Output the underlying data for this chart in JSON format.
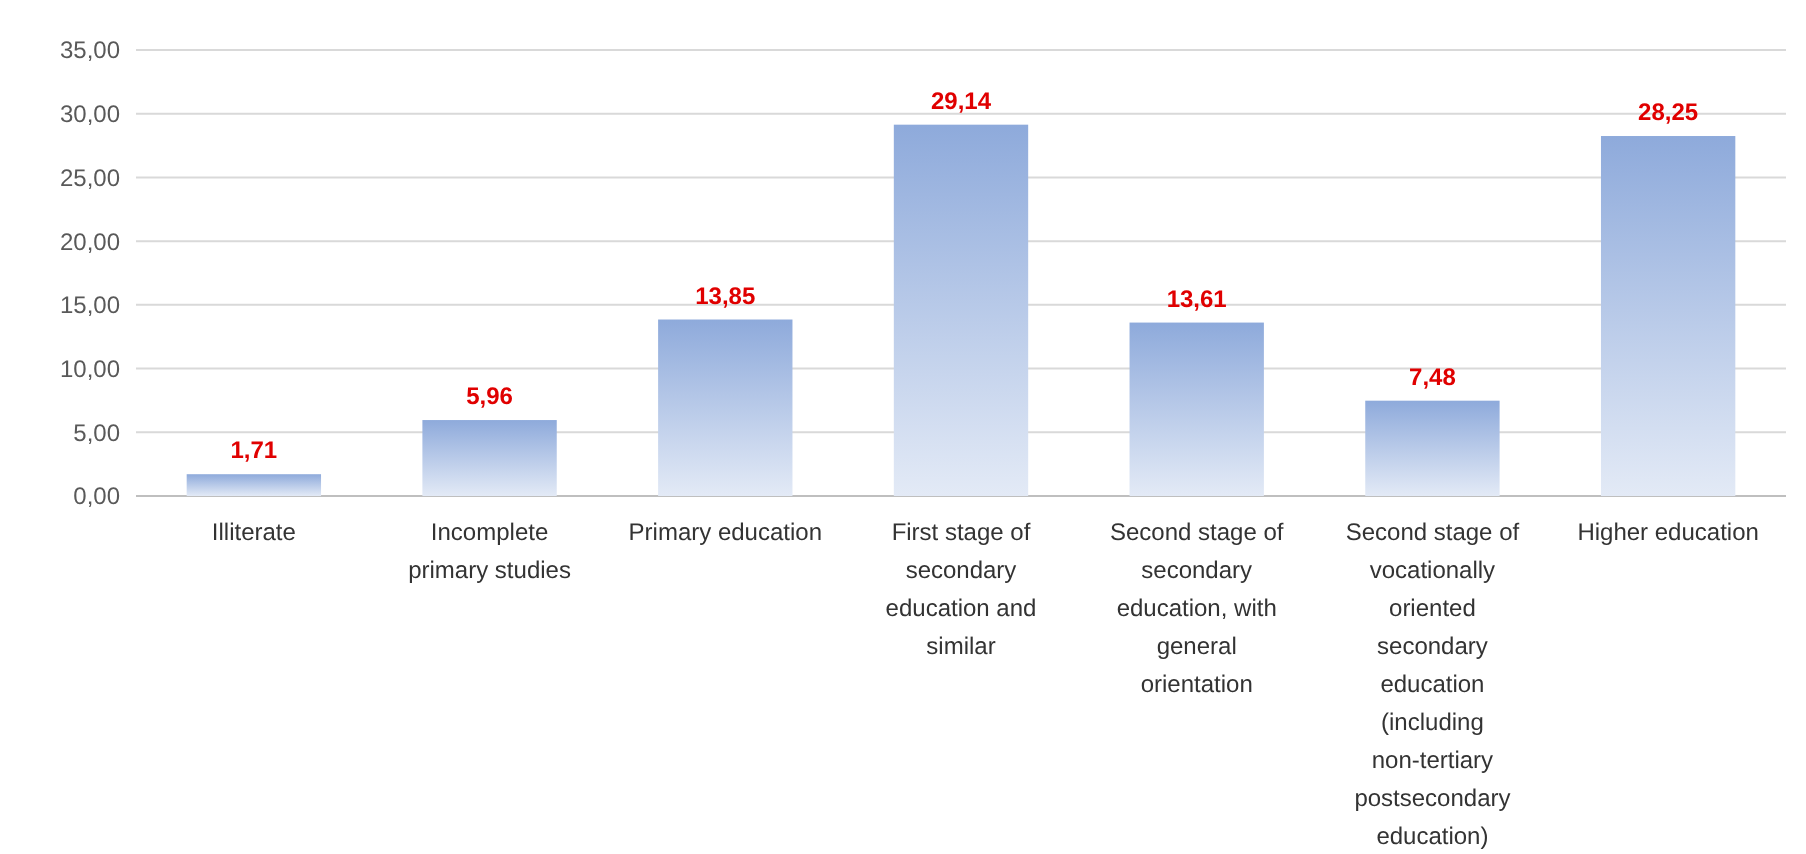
{
  "chart_data": {
    "type": "bar",
    "categories": [
      "Illiterate",
      "Incomplete primary studies",
      "Primary education",
      "First stage of secondary education and similar",
      "Second stage of secondary education, with general orientation",
      "Second stage of vocationally oriented secondary education (including non-tertiary postsecondary education)",
      "Higher education"
    ],
    "values": [
      1.71,
      5.96,
      13.85,
      29.14,
      13.61,
      7.48,
      28.25
    ],
    "value_labels": [
      "1,71",
      "5,96",
      "13,85",
      "29,14",
      "13,61",
      "7,48",
      "28,25"
    ],
    "color": "#8eaadb",
    "ylim": [
      0,
      35
    ],
    "yticks": [
      {
        "value": 0,
        "label": "0,00"
      },
      {
        "value": 5,
        "label": "5,00"
      },
      {
        "value": 10,
        "label": "10,00"
      },
      {
        "value": 15,
        "label": "15,00"
      },
      {
        "value": 20,
        "label": "20,00"
      },
      {
        "value": 25,
        "label": "25,00"
      },
      {
        "value": 30,
        "label": "30,00"
      },
      {
        "value": 35,
        "label": "35,00"
      }
    ],
    "grid": true
  }
}
